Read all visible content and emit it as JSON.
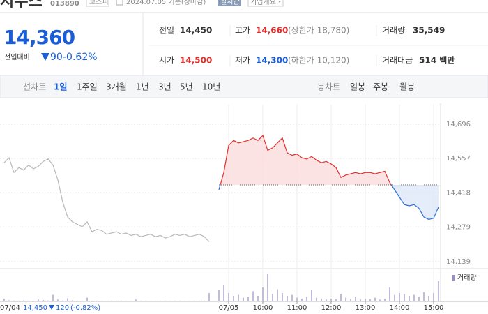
{
  "header": {
    "title": "지누스",
    "code": "013890",
    "market": "코스피",
    "date": "2024.07.05 기준(장마감)",
    "realtime": "실시간",
    "company": "기업개요"
  },
  "price": {
    "current": "14,360",
    "change_label": "전일대비",
    "change": "90",
    "rate": "-0.62%"
  },
  "summary": {
    "rows": [
      [
        {
          "label": "전일",
          "value": "14,450"
        },
        {
          "label": "고가",
          "value": "14,660",
          "note": "(상한가 18,780)"
        },
        {
          "label": "거래량",
          "value": "35,549"
        }
      ],
      [
        {
          "label": "시가",
          "value": "14,500"
        },
        {
          "label": "저가",
          "value": "14,300",
          "note": "(하한가 10,120)"
        },
        {
          "label": "거래대금",
          "value": "514 백만"
        }
      ]
    ]
  },
  "tabs": {
    "line": {
      "label": "선차트",
      "items": [
        "1일",
        "1주일",
        "3개월",
        "1년",
        "3년",
        "5년",
        "10년"
      ]
    },
    "candle": {
      "label": "봉차트",
      "items": [
        "일봉",
        "주봉",
        "월봉"
      ]
    }
  },
  "chart_data": {
    "type": "line",
    "categories": [
      null,
      null,
      null,
      null,
      null,
      null,
      null,
      null,
      null,
      null,
      null,
      null,
      null,
      null,
      null,
      null,
      null,
      null,
      null,
      null,
      null,
      null,
      null,
      null,
      null,
      null,
      null,
      null,
      null,
      null,
      null,
      null,
      null,
      null,
      null,
      null,
      null,
      null,
      null,
      null,
      null,
      null,
      null,
      null,
      null,
      null,
      "07/05",
      null,
      null,
      null,
      null,
      null,
      null,
      "10:00",
      null,
      null,
      null,
      null,
      null,
      null,
      "11:00",
      null,
      null,
      null,
      null,
      null,
      null,
      "12:00",
      null,
      null,
      null,
      null,
      null,
      null,
      "13:00",
      null,
      null,
      null,
      null,
      null,
      null,
      "14:00",
      null,
      null,
      null,
      null,
      null,
      null,
      "15:00",
      null
    ],
    "series": [
      {
        "color": "#b8b8b8",
        "values": [
          14540,
          14560,
          14500,
          14520,
          14510,
          14530,
          14515,
          14525,
          14545,
          14555,
          14530,
          14470,
          14380,
          14320,
          14300,
          14290,
          14280,
          14300,
          14260,
          14270,
          14265,
          14250,
          14255,
          14260,
          14250,
          14255,
          14245,
          14250,
          14240,
          14245,
          14250,
          14240,
          14245,
          14235,
          14240,
          14250,
          14245,
          14250,
          14240,
          14245,
          14250,
          14240,
          14220,
          null,
          null,
          null,
          null,
          null,
          null,
          null,
          null,
          null,
          null,
          null,
          null,
          null,
          null,
          null,
          null,
          null,
          null,
          null,
          null,
          null,
          null,
          null,
          null,
          null,
          null,
          null,
          null,
          null,
          null,
          null,
          null,
          null,
          null,
          null,
          null,
          null,
          null,
          null,
          null,
          null,
          null,
          null,
          null,
          null,
          null,
          null
        ]
      },
      {
        "color": "#e52e2e",
        "color_down": "#2b6fe0",
        "fill": "#fcdcdc",
        "fill_down": "#dde8f8",
        "values": [
          null,
          null,
          null,
          null,
          null,
          null,
          null,
          null,
          null,
          null,
          null,
          null,
          null,
          null,
          null,
          null,
          null,
          null,
          null,
          null,
          null,
          null,
          null,
          null,
          null,
          null,
          null,
          null,
          null,
          null,
          null,
          null,
          null,
          null,
          null,
          null,
          null,
          null,
          null,
          null,
          null,
          null,
          null,
          null,
          14430,
          14500,
          14610,
          14630,
          14620,
          14625,
          14630,
          14640,
          14630,
          14650,
          14590,
          14600,
          14620,
          14640,
          14580,
          14570,
          14575,
          14560,
          14555,
          14565,
          14550,
          14540,
          14545,
          14535,
          14520,
          14480,
          14490,
          14495,
          14500,
          14495,
          14500,
          14500,
          14495,
          14500,
          14505,
          14460,
          14430,
          14400,
          14370,
          14365,
          14370,
          14355,
          14320,
          14310,
          14315,
          14360
        ]
      }
    ],
    "baseline": 14450,
    "ylim": [
      14119,
      14775
    ],
    "yticks": [
      {
        "value": 14139,
        "label": "14,139"
      },
      {
        "value": 14279,
        "label": "14,279"
      },
      {
        "value": 14418,
        "label": "14,418"
      },
      {
        "value": 14557,
        "label": "14,557"
      },
      {
        "value": 14696,
        "label": "14,696"
      }
    ],
    "grid": true,
    "volume": {
      "label": "거래량",
      "color": "#9a8fc4",
      "values": [
        300,
        120,
        80,
        60,
        100,
        50,
        40,
        200,
        150,
        90,
        700,
        200,
        90,
        350,
        120,
        80,
        60,
        400,
        50,
        70,
        40,
        30,
        60,
        50,
        80,
        30,
        40,
        200,
        50,
        60,
        40,
        30,
        50,
        70,
        40,
        60,
        50,
        30,
        40,
        60,
        50,
        80,
        900,
        null,
        1200,
        1800,
        900,
        600,
        700,
        400,
        500,
        1100,
        600,
        1500,
        3000,
        800,
        1300,
        900,
        600,
        700,
        400,
        300,
        500,
        1200,
        400,
        300,
        200,
        300,
        250,
        800,
        400,
        300,
        500,
        200,
        300,
        250,
        400,
        200,
        300,
        1500,
        700,
        900,
        800,
        600,
        700,
        500,
        1000,
        600,
        900,
        2200
      ]
    },
    "prev_info": {
      "date": "07/04",
      "close": "14,450",
      "change": "120",
      "rate": "(-0.82%)"
    }
  }
}
